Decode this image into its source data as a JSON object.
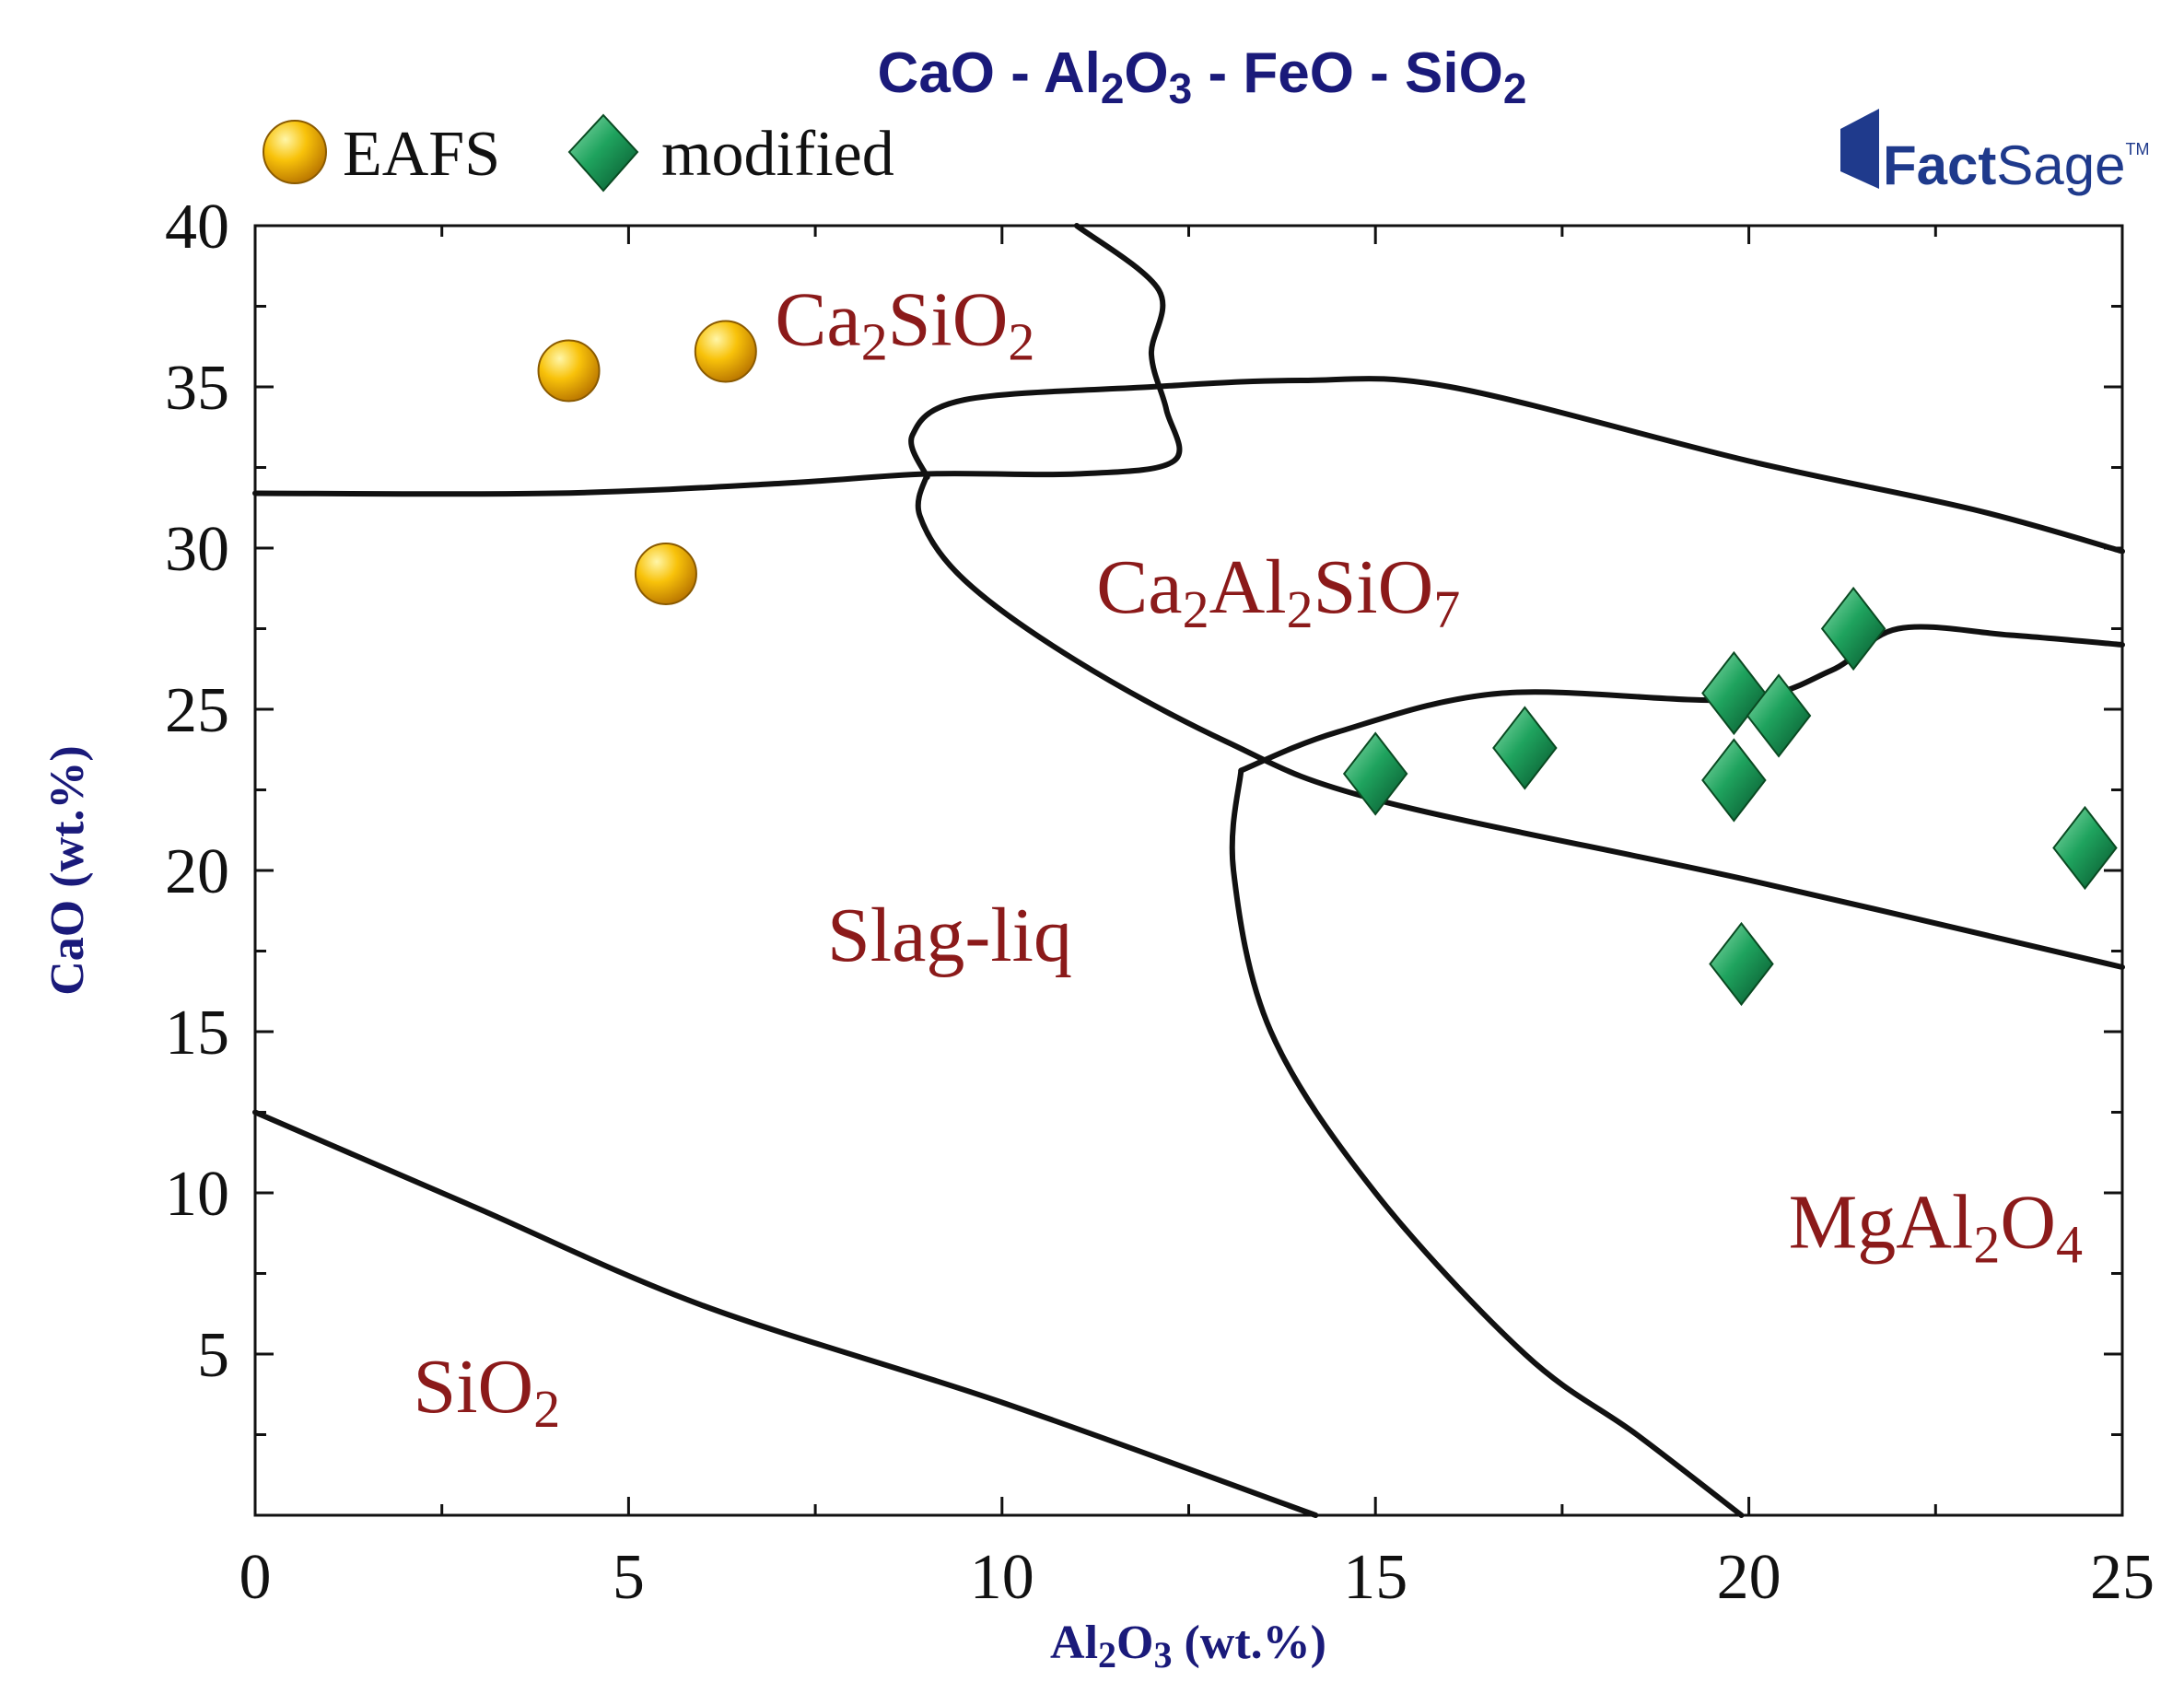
{
  "chart_data": {
    "type": "scatter",
    "title": {
      "parts": [
        {
          "t": "CaO - Al"
        },
        {
          "t": "2",
          "sub": true
        },
        {
          "t": "O"
        },
        {
          "t": "3",
          "sub": true
        },
        {
          "t": " - FeO - SiO"
        },
        {
          "t": "2",
          "sub": true
        }
      ]
    },
    "xlabel": {
      "parts": [
        {
          "t": "Al"
        },
        {
          "t": "2",
          "sub": true
        },
        {
          "t": "O"
        },
        {
          "t": "3",
          "sub": true
        },
        {
          "t": " (wt.%)"
        }
      ]
    },
    "ylabel": "CaO (wt.%)",
    "xlim": [
      0,
      25
    ],
    "ylim": [
      0,
      40
    ],
    "xticks": [
      0,
      5,
      10,
      15,
      20,
      25
    ],
    "yticks": [
      5,
      10,
      15,
      20,
      25,
      30,
      35,
      40
    ],
    "legend_position": "top-left",
    "series": [
      {
        "name": "EAFS",
        "marker": "circle",
        "color": "#f5b400",
        "points": [
          [
            4.2,
            35.5
          ],
          [
            6.3,
            36.1
          ],
          [
            5.5,
            29.2
          ]
        ]
      },
      {
        "name": "modified",
        "marker": "diamond",
        "color": "#1f9a5a",
        "points": [
          [
            15.0,
            23.0
          ],
          [
            17.0,
            23.8
          ],
          [
            19.8,
            25.5
          ],
          [
            19.8,
            22.8
          ],
          [
            20.4,
            24.8
          ],
          [
            21.4,
            27.5
          ],
          [
            24.5,
            20.7
          ],
          [
            19.9,
            17.1
          ]
        ]
      }
    ],
    "boundaries": [
      {
        "name": "Ca2SiO4-upper-boundary",
        "points": [
          [
            9.0,
            32.2
          ],
          [
            8.8,
            33.5
          ],
          [
            9.5,
            34.6
          ],
          [
            12.0,
            35.0
          ],
          [
            14.0,
            35.2
          ],
          [
            16.0,
            35.0
          ],
          [
            20.0,
            32.7
          ],
          [
            23.0,
            31.2
          ],
          [
            25.0,
            29.9
          ]
        ]
      },
      {
        "name": "liquid-left-boundary",
        "points": [
          [
            0,
            31.7
          ],
          [
            4.0,
            31.7
          ],
          [
            7.0,
            32.0
          ],
          [
            9.0,
            32.3
          ],
          [
            11.0,
            32.3
          ],
          [
            12.3,
            32.7
          ],
          [
            12.2,
            34.3
          ],
          [
            12.0,
            36.0
          ],
          [
            12.1,
            38.0
          ],
          [
            11.0,
            40.0
          ]
        ]
      },
      {
        "name": "Ca2Al2SiO7-lower-boundary",
        "points": [
          [
            9.0,
            32.3
          ],
          [
            8.9,
            31.0
          ],
          [
            9.5,
            29.0
          ],
          [
            11.0,
            26.5
          ],
          [
            13.0,
            24.0
          ],
          [
            15.0,
            22.2
          ],
          [
            20.0,
            19.7
          ],
          [
            25.0,
            17.0
          ]
        ]
      },
      {
        "name": "spinel-upper-boundary",
        "points": [
          [
            13.2,
            23.1
          ],
          [
            14.5,
            24.3
          ],
          [
            16.7,
            25.5
          ],
          [
            19.8,
            25.3
          ],
          [
            21.1,
            26.2
          ],
          [
            22.0,
            27.5
          ],
          [
            23.5,
            27.3
          ],
          [
            25.0,
            27.0
          ]
        ]
      },
      {
        "name": "spinel-left-boundary",
        "points": [
          [
            13.2,
            23.1
          ],
          [
            13.1,
            20.0
          ],
          [
            13.6,
            15.0
          ],
          [
            15.0,
            10.0
          ],
          [
            17.0,
            5.0
          ],
          [
            18.5,
            2.5
          ],
          [
            19.9,
            0.0
          ]
        ]
      },
      {
        "name": "SiO2-boundary",
        "points": [
          [
            0,
            12.5
          ],
          [
            1.0,
            11.5
          ],
          [
            3.0,
            9.5
          ],
          [
            6.0,
            6.5
          ],
          [
            10.0,
            3.5
          ],
          [
            14.2,
            0.0
          ]
        ]
      }
    ],
    "regions": [
      {
        "name": "ca2sio2",
        "x": 8.7,
        "y": 36.3,
        "parts": [
          {
            "t": "Ca"
          },
          {
            "t": "2",
            "sub": true
          },
          {
            "t": "SiO"
          },
          {
            "t": "2",
            "sub": true
          }
        ]
      },
      {
        "name": "ca2al2sio7",
        "x": 13.7,
        "y": 28.0,
        "parts": [
          {
            "t": "Ca"
          },
          {
            "t": "2",
            "sub": true
          },
          {
            "t": "Al"
          },
          {
            "t": "2",
            "sub": true
          },
          {
            "t": "SiO"
          },
          {
            "t": "7",
            "sub": true
          }
        ]
      },
      {
        "name": "slag-liq",
        "x": 9.3,
        "y": 17.2,
        "parts": [
          {
            "t": "Slag-liq"
          }
        ]
      },
      {
        "name": "mgal2o4",
        "x": 22.5,
        "y": 8.3,
        "parts": [
          {
            "t": "MgAl"
          },
          {
            "t": "2",
            "sub": true
          },
          {
            "t": "O"
          },
          {
            "t": "4",
            "sub": true
          }
        ]
      },
      {
        "name": "sio2",
        "x": 3.1,
        "y": 3.2,
        "parts": [
          {
            "t": "SiO"
          },
          {
            "t": "2",
            "sub": true
          }
        ]
      }
    ],
    "logo": {
      "main": "Fact",
      "second": "Sage",
      "tm": "TM",
      "color": "#1f3a8c"
    }
  }
}
